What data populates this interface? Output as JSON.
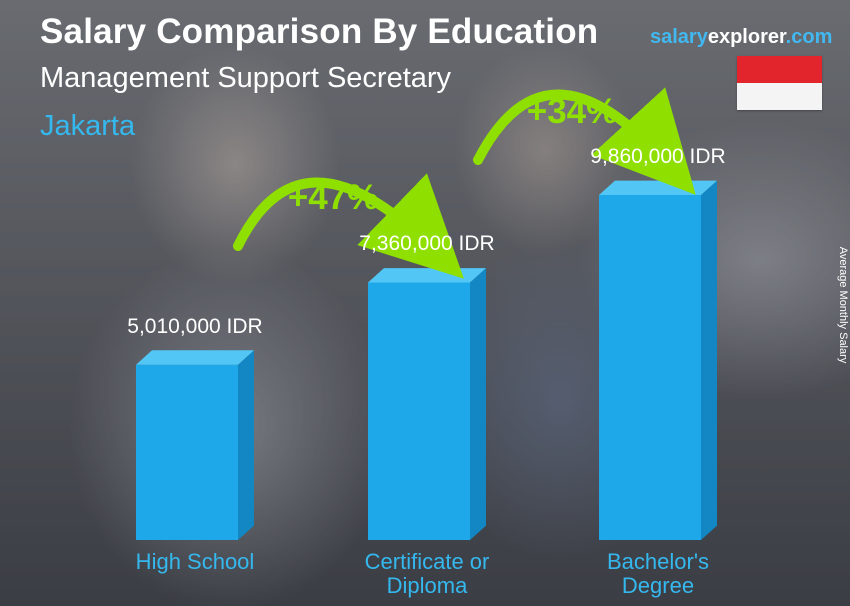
{
  "header": {
    "title": "Salary Comparison By Education",
    "subtitle": "Management Support Secretary",
    "location": "Jakarta"
  },
  "brand": {
    "part1": "salary",
    "part2": "explorer",
    "part3": ".com"
  },
  "flag": {
    "country": "Indonesia",
    "top_color": "#e2242c",
    "bottom_color": "#f4f4f4"
  },
  "axis_label": "Average Monthly Salary",
  "colors": {
    "bar_front": "#1ea8ea",
    "bar_side": "#1287c4",
    "bar_top": "#52c6f5",
    "accent_text": "#35b8ee",
    "increase": "#8fe000"
  },
  "chart_data": {
    "type": "bar",
    "categories": [
      "High School",
      "Certificate or Diploma",
      "Bachelor's Degree"
    ],
    "category_lines": [
      [
        "High School"
      ],
      [
        "Certificate or",
        "Diploma"
      ],
      [
        "Bachelor's",
        "Degree"
      ]
    ],
    "values": [
      5010000,
      7360000,
      9860000
    ],
    "value_labels": [
      "5,010,000 IDR",
      "7,360,000 IDR",
      "9,860,000 IDR"
    ],
    "unit": "IDR",
    "increases": [
      {
        "from": "High School",
        "to": "Certificate or Diploma",
        "label": "+47%"
      },
      {
        "from": "Certificate or Diploma",
        "to": "Bachelor's Degree",
        "label": "+34%"
      }
    ],
    "ylabel": "Average Monthly Salary",
    "title": "Salary Comparison By Education"
  }
}
